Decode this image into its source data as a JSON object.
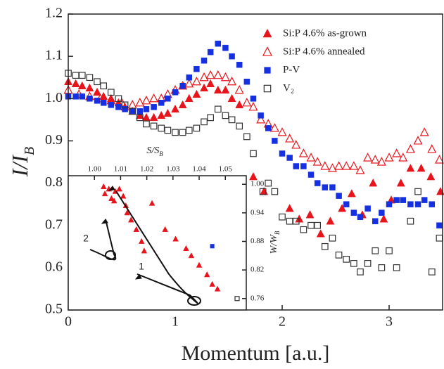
{
  "chart_data": [
    {
      "type": "scatter",
      "x_label": "Momentum [a.u.]",
      "y_label": {
        "text": "I/I",
        "sub": "B"
      },
      "xlim": [
        0,
        3.5
      ],
      "ylim": [
        0.5,
        1.2
      ],
      "xticks": [
        0,
        1,
        2,
        3
      ],
      "yticks": [
        0.5,
        0.6,
        0.7,
        0.8,
        0.9,
        {
          "value": 1,
          "label": "1.0"
        },
        1.1,
        1.2
      ],
      "legend": "upper right",
      "series": [
        {
          "name": "Si:P 4.6% as-grown",
          "color": "#e8141c",
          "marker": "triangle",
          "x": [
            0,
            0.07,
            0.13,
            0.2,
            0.27,
            0.33,
            0.4,
            0.47,
            0.53,
            0.6,
            0.67,
            0.73,
            0.8,
            0.87,
            0.93,
            1.0,
            1.07,
            1.13,
            1.2,
            1.27,
            1.33,
            1.4,
            1.47,
            1.53,
            1.6,
            1.73,
            1.83,
            2.07,
            2.16,
            2.26,
            2.36,
            2.45,
            2.56,
            2.65,
            2.75,
            2.85,
            2.95,
            3.02,
            3.11,
            3.2,
            3.3,
            3.39,
            3.48
          ],
          "values": [
            1.04,
            1.035,
            1.03,
            1.025,
            1.015,
            1.005,
            1.0,
            0.99,
            0.98,
            0.97,
            0.96,
            0.955,
            0.955,
            0.96,
            0.965,
            0.975,
            0.985,
            1.0,
            1.01,
            1.025,
            1.035,
            1.02,
            1.02,
            1.0,
            0.985,
            0.815,
            0.78,
            0.74,
            0.715,
            0.725,
            0.68,
            0.71,
            0.74,
            0.775,
            0.725,
            0.8,
            0.715,
            0.76,
            0.8,
            0.835,
            0.835,
            0.815,
            0.78
          ]
        },
        {
          "name": "Si:P 4.6% annealed",
          "color": "#e8141c",
          "marker": "triangle-open",
          "x": [
            0,
            0.1,
            0.2,
            0.3,
            0.4,
            0.5,
            0.6,
            0.67,
            0.73,
            0.8,
            0.87,
            0.93,
            1.0,
            1.07,
            1.13,
            1.2,
            1.27,
            1.33,
            1.4,
            1.47,
            1.53,
            1.6,
            1.67,
            1.73,
            1.8,
            1.87,
            1.93,
            2.0,
            2.07,
            2.13,
            2.2,
            2.27,
            2.33,
            2.4,
            2.47,
            2.53,
            2.6,
            2.67,
            2.73,
            2.8,
            2.87,
            2.93,
            3.0,
            3.07,
            3.13,
            3.2,
            3.27,
            3.33,
            3.4,
            3.47
          ],
          "values": [
            1.02,
            1.01,
            1.005,
            1.0,
            0.995,
            0.99,
            0.985,
            0.99,
            0.995,
            1.0,
            1.0,
            1.01,
            1.02,
            1.03,
            1.035,
            1.04,
            1.05,
            1.055,
            1.055,
            1.05,
            1.04,
            1.02,
            0.99,
            0.98,
            0.95,
            0.94,
            0.93,
            0.92,
            0.905,
            0.89,
            0.87,
            0.86,
            0.85,
            0.84,
            0.835,
            0.84,
            0.84,
            0.84,
            0.83,
            0.86,
            0.855,
            0.85,
            0.86,
            0.87,
            0.86,
            0.88,
            0.9,
            0.92,
            0.88,
            0.855
          ]
        },
        {
          "name": "P-V",
          "color": "#1530e0",
          "marker": "square",
          "x": [
            0,
            0.07,
            0.13,
            0.2,
            0.27,
            0.33,
            0.4,
            0.47,
            0.53,
            0.6,
            0.67,
            0.73,
            0.8,
            0.87,
            0.93,
            1.0,
            1.07,
            1.13,
            1.2,
            1.27,
            1.33,
            1.4,
            1.47,
            1.53,
            1.6,
            1.67,
            1.73,
            1.8,
            1.87,
            1.93,
            2.0,
            2.07,
            2.13,
            2.2,
            2.27,
            2.33,
            2.4,
            2.47,
            2.53,
            2.6,
            2.67,
            2.73,
            2.8,
            2.87,
            2.93,
            3.0,
            3.07,
            3.13,
            3.2,
            3.27,
            3.33,
            3.4,
            3.47
          ],
          "values": [
            1.005,
            1.005,
            1.005,
            1.0,
            0.995,
            0.99,
            0.985,
            0.98,
            0.975,
            0.97,
            0.97,
            0.975,
            0.98,
            0.99,
            1.0,
            1.015,
            1.03,
            1.05,
            1.07,
            1.09,
            1.11,
            1.13,
            1.12,
            1.1,
            1.08,
            1.04,
            1.0,
            0.96,
            0.93,
            0.9,
            0.87,
            0.86,
            0.84,
            0.84,
            0.82,
            0.8,
            0.79,
            0.79,
            0.77,
            0.75,
            0.73,
            0.72,
            0.74,
            0.71,
            0.73,
            0.75,
            0.76,
            0.76,
            0.75,
            0.75,
            0.76,
            0.75,
            0.7
          ]
        },
        {
          "name": "V₂",
          "color": "#333333",
          "marker": "square-open",
          "x": [
            0,
            0.07,
            0.13,
            0.2,
            0.27,
            0.33,
            0.4,
            0.47,
            0.53,
            0.6,
            0.67,
            0.73,
            0.8,
            0.87,
            0.93,
            1.0,
            1.07,
            1.13,
            1.2,
            1.27,
            1.33,
            1.4,
            1.47,
            1.53,
            1.6,
            1.67,
            1.73,
            1.82,
            1.87,
            1.93,
            2.0,
            2.07,
            2.13,
            2.2,
            2.27,
            2.33,
            2.4,
            2.47,
            2.53,
            2.6,
            2.67,
            2.73,
            2.8,
            2.87,
            2.93,
            3.0,
            3.07,
            3.2,
            3.27,
            3.4,
            3.47
          ],
          "values": [
            1.06,
            1.055,
            1.055,
            1.05,
            1.04,
            1.03,
            1.015,
            1.0,
            0.985,
            0.97,
            0.955,
            0.94,
            0.935,
            0.93,
            0.925,
            0.92,
            0.92,
            0.925,
            0.93,
            0.945,
            0.955,
            0.975,
            0.96,
            0.95,
            0.935,
            0.91,
            0.87,
            0.78,
            0.8,
            0.78,
            0.72,
            0.71,
            0.71,
            0.69,
            0.7,
            0.7,
            0.65,
            0.67,
            0.63,
            0.62,
            0.61,
            0.59,
            0.61,
            0.64,
            0.6,
            0.64,
            0.6,
            0.71,
            0.78,
            0.59,
            0.67
          ]
        }
      ]
    },
    {
      "type": "scatter",
      "x_label": {
        "text": "S/S",
        "sub": "B"
      },
      "y_label": {
        "text": "W/W",
        "sub": "B"
      },
      "x_axis_position": "top",
      "y_axis_position": "right",
      "xlim": [
        0.99,
        1.058
      ],
      "ylim": [
        0.736,
        1.018
      ],
      "xticks": [
        {
          "value": 1,
          "label": "1.00"
        },
        1.01,
        1.02,
        1.03,
        1.04,
        1.05
      ],
      "yticks": [
        0.76,
        0.82,
        0.88,
        0.94,
        {
          "value": 1,
          "label": "1.00"
        }
      ],
      "annotations": [
        "1",
        "2"
      ],
      "series": [
        {
          "color": "#e8141c",
          "marker": "triangle",
          "x": [
            1.0035,
            1.0055,
            1.004,
            1.0065,
            1.008,
            1.0095,
            1.011,
            1.0075,
            1.012,
            1.0125,
            1.014,
            1.016,
            1.018,
            1.019,
            1.022,
            1.027,
            1.031,
            1.035,
            1.037,
            1.04,
            1.043,
            1.045,
            1.047
          ],
          "values": [
            0.995,
            0.99,
            0.98,
            0.97,
            0.985,
            0.99,
            0.975,
            0.965,
            0.955,
            0.94,
            0.925,
            0.905,
            0.88,
            0.86,
            0.96,
            0.905,
            0.885,
            0.865,
            0.85,
            0.83,
            0.81,
            0.79,
            0.78
          ]
        },
        {
          "color": "#1530e0",
          "marker": "square",
          "x": [
            1.045
          ],
          "values": [
            0.87
          ]
        },
        {
          "color": "#333333",
          "marker": "square-open",
          "x": [
            1.0545
          ],
          "values": [
            0.76
          ]
        }
      ]
    }
  ]
}
